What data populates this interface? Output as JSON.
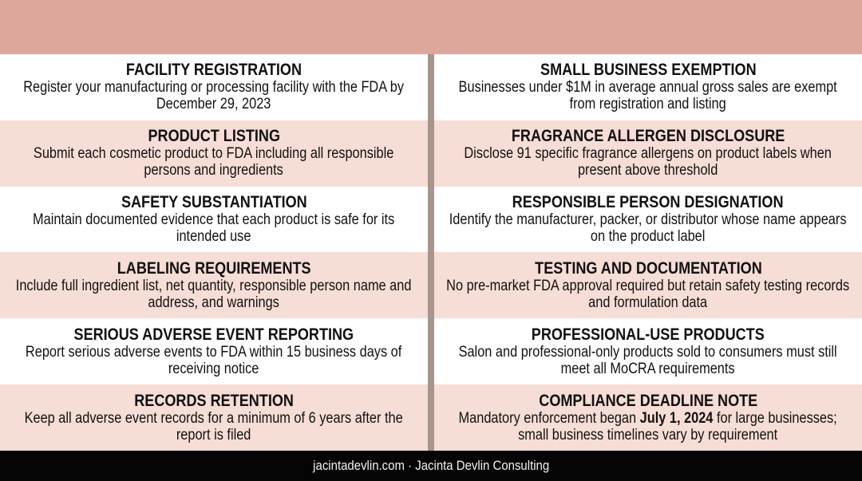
{
  "left": [
    {
      "title": "FACILITY REGISTRATION",
      "desc": "Register your manufacturing or processing facility with the FDA by December 29, 2023"
    },
    {
      "title": "PRODUCT LISTING",
      "desc": "Submit each cosmetic product to FDA including all responsible persons and ingredients"
    },
    {
      "title": "SAFETY SUBSTANTIATION",
      "desc": "Maintain documented evidence that each product is safe for its intended use"
    },
    {
      "title": "LABELING REQUIREMENTS",
      "desc": "Include full ingredient list, net quantity, responsible person name and address, and warnings"
    },
    {
      "title": "SERIOUS ADVERSE EVENT REPORTING",
      "desc": "Report serious adverse events to FDA within 15 business days of receiving notice"
    },
    {
      "title": "RECORDS RETENTION",
      "desc": "Keep all adverse event records for a minimum of 6 years after the report is filed"
    }
  ],
  "right": [
    {
      "title": "SMALL BUSINESS EXEMPTION",
      "desc": "Businesses under $1M in average annual gross sales are exempt from registration and listing"
    },
    {
      "title": "FRAGRANCE ALLERGEN DISCLOSURE",
      "desc": "Disclose 91 specific fragrance allergens on product labels when present above threshold"
    },
    {
      "title": "RESPONSIBLE PERSON DESIGNATION",
      "desc": "Identify the manufacturer, packer, or distributor whose name appears on the product label"
    },
    {
      "title": "TESTING AND DOCUMENTATION",
      "desc": "No pre-market FDA approval required but retain safety testing records and formulation data"
    },
    {
      "title": "PROFESSIONAL-USE PRODUCTS",
      "desc": "Salon and professional-only products sold to consumers must still meet all MoCRA requirements"
    },
    {
      "title": "COMPLIANCE DEADLINE NOTE",
      "desc_pre": "Mandatory enforcement began ",
      "desc_bold": "July 1, 2024",
      "desc_post": " for large businesses; small business timelines vary by requirement"
    }
  ],
  "footer": {
    "text": "jacintadevlin.com · Jacinta Devlin Consulting"
  }
}
